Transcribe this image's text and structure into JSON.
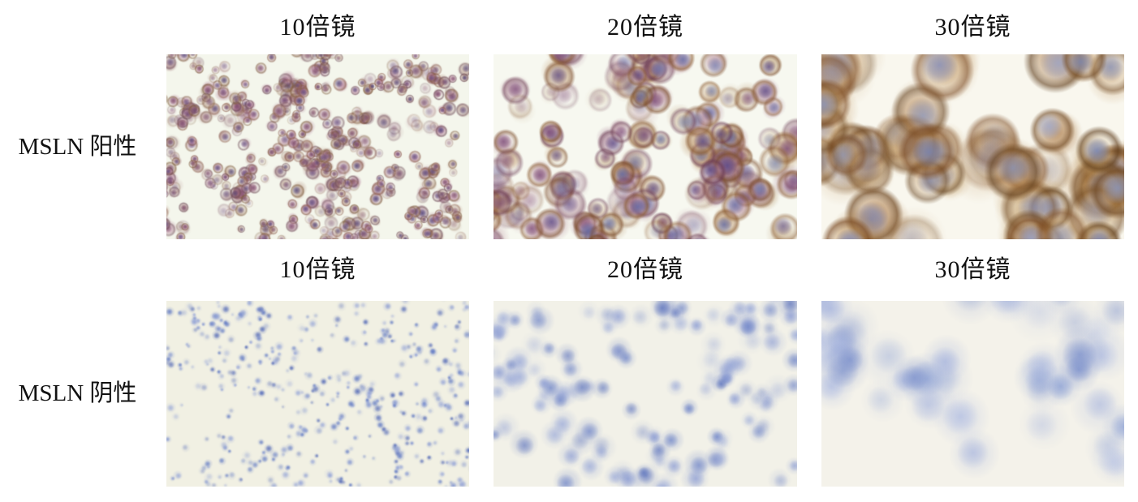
{
  "figure": {
    "page_background": "#ffffff",
    "text_color": "#111111",
    "rows": [
      {
        "label": "MSLN 阳性",
        "columns": [
          "10倍镜",
          "20倍镜",
          "30倍镜"
        ],
        "panels": [
          {
            "name": "msln-positive-10x",
            "type": "pos",
            "seed": 11,
            "bg": "#f4f6ec",
            "count": 430,
            "rmin": 4.5,
            "rmax": 8.5,
            "cluster": 0.62,
            "faint": 0.3,
            "body": [
              "#a86a8a",
              "#b08a7a",
              "#9a6a70",
              "#b58aa0"
            ],
            "rim": [
              "#7d5a3a",
              "#8a5a4a",
              "#6d4a56"
            ],
            "nucleus": [
              "#5d4a80",
              "#6a4470",
              "#4a3f78",
              "#7a4a6a"
            ]
          },
          {
            "name": "msln-positive-20x",
            "type": "pos",
            "seed": 22,
            "bg": "#f7f8f0",
            "count": 130,
            "rmin": 11,
            "rmax": 19,
            "cluster": 0.55,
            "faint": 0.22,
            "body": [
              "#b78a5a",
              "#a8768a",
              "#b99a72",
              "#9a6a86"
            ],
            "rim": [
              "#7a4a28",
              "#6a3a52",
              "#8a5a30"
            ],
            "nucleus": [
              "#6f80b8",
              "#5a4a8a",
              "#7a4a7a",
              "#5f6aa8"
            ]
          },
          {
            "name": "msln-positive-30x",
            "type": "pos",
            "seed": 33,
            "bg": "#f9f7ee",
            "count": 48,
            "rmin": 24,
            "rmax": 36,
            "cluster": 0.5,
            "faint": 0.18,
            "body": [
              "#b5854a",
              "#c09a62",
              "#a8743e",
              "#bd9058"
            ],
            "rim": [
              "#6a421c",
              "#7a4a24",
              "#5c3a18"
            ],
            "nucleus": [
              "#8397cb",
              "#6f84c0",
              "#9aa8d4",
              "#7787c2"
            ]
          }
        ]
      },
      {
        "label": "MSLN 阴性",
        "columns": [
          "10倍镜",
          "20倍镜",
          "30倍镜"
        ],
        "panels": [
          {
            "name": "msln-negative-10x",
            "type": "neg",
            "seed": 44,
            "bg": "#f1f0e3",
            "count": 420,
            "rmin": 3,
            "rmax": 6,
            "cluster": 0.35,
            "faint": 0.4,
            "nucleus": [
              "#5a74c2",
              "#7c90cf",
              "#4c63b4",
              "#8d9ed6"
            ]
          },
          {
            "name": "msln-negative-20x",
            "type": "neg",
            "seed": 55,
            "bg": "#f2f1e8",
            "count": 120,
            "rmin": 9,
            "rmax": 16,
            "cluster": 0.35,
            "faint": 0.35,
            "nucleus": [
              "#6d83c7",
              "#8a9bd3",
              "#5b72bd",
              "#9cabd9"
            ]
          },
          {
            "name": "msln-negative-30x",
            "type": "neg",
            "seed": 66,
            "bg": "#f4f2ea",
            "count": 42,
            "rmin": 20,
            "rmax": 32,
            "cluster": 0.3,
            "faint": 0.4,
            "nucleus": [
              "#8fa3d6",
              "#a6b4de",
              "#7b90cc",
              "#b4c0e3"
            ]
          }
        ]
      }
    ]
  }
}
